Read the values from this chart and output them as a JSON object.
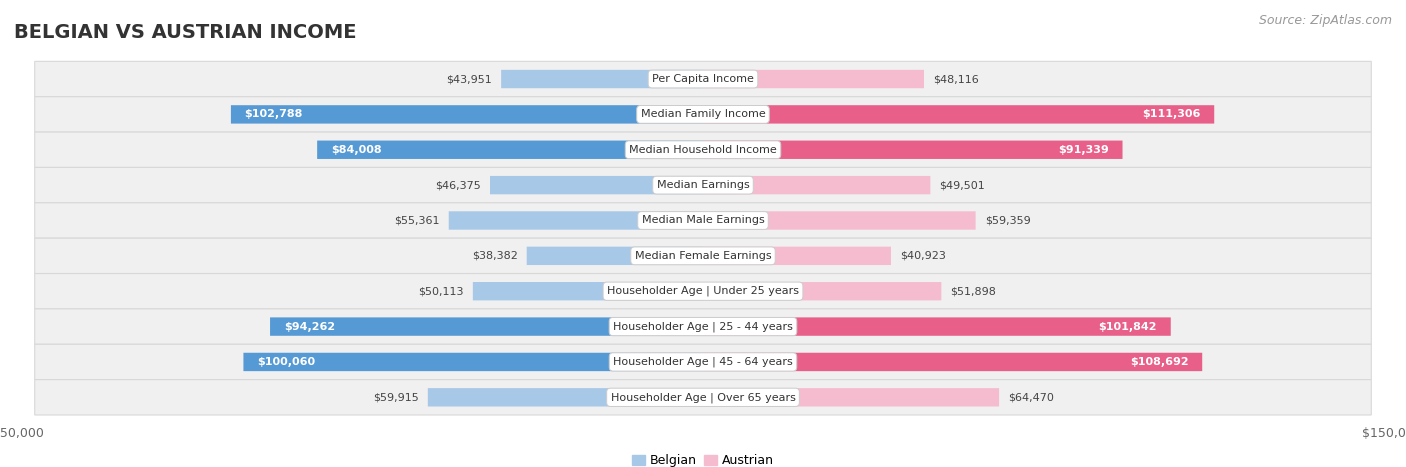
{
  "title": "BELGIAN VS AUSTRIAN INCOME",
  "source": "Source: ZipAtlas.com",
  "categories": [
    "Per Capita Income",
    "Median Family Income",
    "Median Household Income",
    "Median Earnings",
    "Median Male Earnings",
    "Median Female Earnings",
    "Householder Age | Under 25 years",
    "Householder Age | 25 - 44 years",
    "Householder Age | 45 - 64 years",
    "Householder Age | Over 65 years"
  ],
  "belgian_values": [
    43951,
    102788,
    84008,
    46375,
    55361,
    38382,
    50113,
    94262,
    100060,
    59915
  ],
  "austrian_values": [
    48116,
    111306,
    91339,
    49501,
    59359,
    40923,
    51898,
    101842,
    108692,
    64470
  ],
  "belgian_labels": [
    "$43,951",
    "$102,788",
    "$84,008",
    "$46,375",
    "$55,361",
    "$38,382",
    "$50,113",
    "$94,262",
    "$100,060",
    "$59,915"
  ],
  "austrian_labels": [
    "$48,116",
    "$111,306",
    "$91,339",
    "$49,501",
    "$59,359",
    "$40,923",
    "$51,898",
    "$101,842",
    "$108,692",
    "$64,470"
  ],
  "belgian_color_light": "#a8c8e8",
  "belgian_color_dark": "#5599d5",
  "austrian_color_light": "#f5bcd0",
  "austrian_color_dark": "#e8608a",
  "label_threshold": 80000,
  "max_value": 150000,
  "bg_color": "#ffffff",
  "row_bg_color": "#f0f0f0",
  "row_border_color": "#d8d8d8",
  "center_label_bg": "#ffffff",
  "center_label_border": "#cccccc",
  "title_fontsize": 14,
  "source_fontsize": 9,
  "bar_label_fontsize": 8,
  "category_fontsize": 8,
  "axis_label_fontsize": 9,
  "legend_fontsize": 9
}
